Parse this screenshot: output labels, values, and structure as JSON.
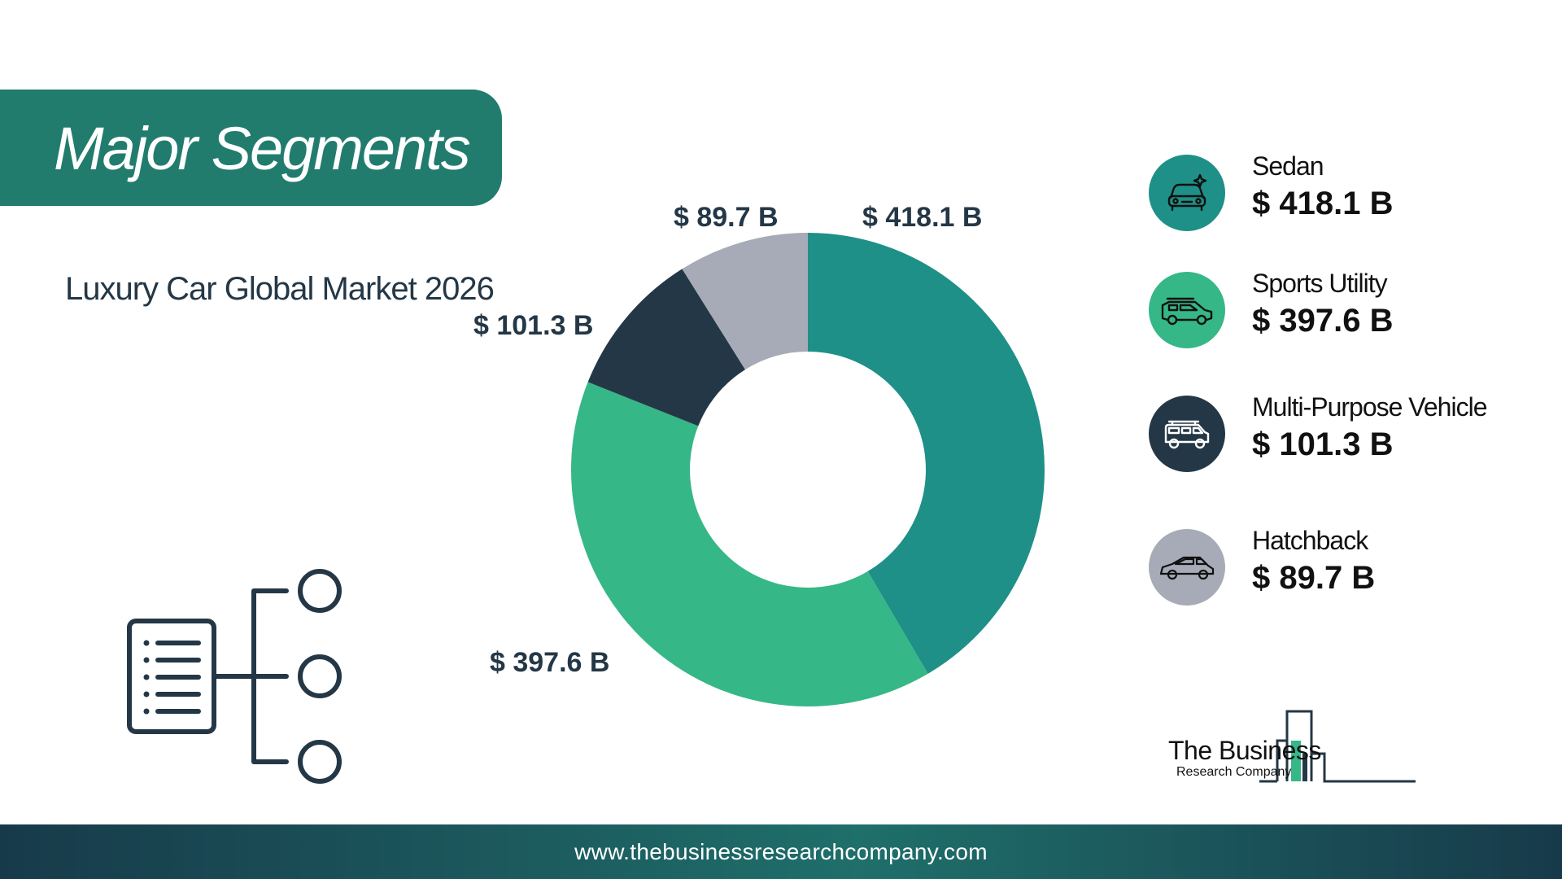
{
  "banner": {
    "title": "Major Segments"
  },
  "subtitle": "Luxury Car Global Market 2026",
  "chart_data": {
    "type": "pie",
    "title": "Luxury Car Global Market 2026",
    "donut": true,
    "unit_prefix": "$",
    "unit_suffix": "B",
    "categories": [
      "Sedan",
      "Sports Utility",
      "Multi-Purpose Vehicle",
      "Hatchback"
    ],
    "values": [
      418.1,
      397.6,
      101.3,
      89.7
    ],
    "labels": [
      "$ 418.1 B",
      "$ 397.6 B",
      "$ 101.3 B",
      "$ 89.7 B"
    ],
    "colors": [
      "#1e9087",
      "#35b788",
      "#243746",
      "#a7abb7"
    ],
    "legend_position": "right"
  },
  "legend": [
    {
      "name": "Sedan",
      "value": "$ 418.1 B",
      "color": "#1e9087",
      "icon": "sedan-icon"
    },
    {
      "name": "Sports Utility",
      "value": "$ 397.6 B",
      "color": "#35b788",
      "icon": "suv-icon"
    },
    {
      "name": "Multi-Purpose Vehicle",
      "value": "$ 101.3 B",
      "color": "#243746",
      "icon": "mpv-icon"
    },
    {
      "name": "Hatchback",
      "value": "$ 89.7 B",
      "color": "#a7abb7",
      "icon": "hatchback-icon"
    }
  ],
  "logo": {
    "line1": "The Business",
    "line2": "Research Company"
  },
  "footer": {
    "url": "www.thebusinessresearchcompany.com"
  }
}
